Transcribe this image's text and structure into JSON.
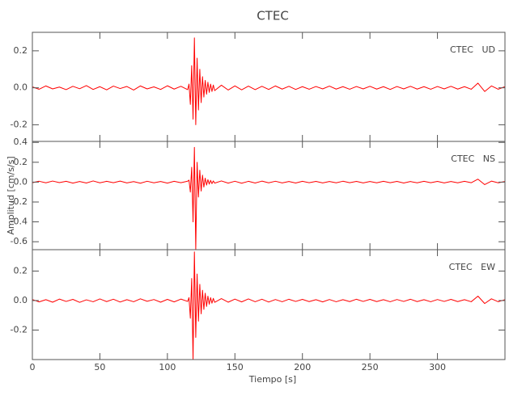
{
  "chart_data": [
    {
      "type": "line",
      "title": "CTEC",
      "label": "CTEC   UD",
      "color": "#ff0000",
      "x": [
        0,
        5,
        10,
        15,
        20,
        25,
        30,
        35,
        40,
        45,
        50,
        55,
        60,
        65,
        70,
        75,
        80,
        85,
        90,
        95,
        100,
        105,
        110,
        115,
        116,
        117,
        118,
        119,
        120,
        121,
        122,
        123,
        124,
        125,
        126,
        127,
        128,
        129,
        130,
        131,
        132,
        133,
        134,
        135,
        140,
        145,
        150,
        155,
        160,
        165,
        170,
        175,
        180,
        185,
        190,
        195,
        200,
        205,
        210,
        215,
        220,
        225,
        230,
        235,
        240,
        245,
        250,
        255,
        260,
        265,
        270,
        275,
        280,
        285,
        290,
        295,
        300,
        305,
        310,
        315,
        320,
        325,
        330,
        335,
        340,
        345,
        350
      ],
      "values": [
        0.005,
        -0.008,
        0.01,
        -0.006,
        0.004,
        -0.01,
        0.008,
        -0.005,
        0.012,
        -0.009,
        0.006,
        -0.011,
        0.009,
        -0.004,
        0.007,
        -0.012,
        0.01,
        -0.006,
        0.005,
        -0.009,
        0.011,
        -0.007,
        0.008,
        -0.01,
        0.02,
        -0.09,
        0.12,
        -0.17,
        0.27,
        -0.2,
        0.16,
        -0.12,
        0.1,
        -0.08,
        0.06,
        -0.05,
        0.04,
        -0.035,
        0.03,
        -0.025,
        0.02,
        -0.02,
        0.015,
        -0.015,
        0.014,
        -0.012,
        0.01,
        -0.011,
        0.009,
        -0.01,
        0.008,
        -0.009,
        0.01,
        -0.007,
        0.008,
        -0.009,
        0.006,
        -0.008,
        0.007,
        -0.006,
        0.009,
        -0.007,
        0.006,
        -0.008,
        0.007,
        -0.006,
        0.008,
        -0.007,
        0.006,
        -0.009,
        0.007,
        -0.006,
        0.008,
        -0.007,
        0.006,
        -0.008,
        0.007,
        -0.006,
        0.008,
        -0.007,
        0.006,
        -0.008,
        0.025,
        -0.02,
        0.01,
        -0.008,
        0.006
      ],
      "xlim": [
        0,
        350
      ],
      "ylim": [
        -0.29,
        0.3
      ],
      "yticks": [
        0.2,
        {
          "value": 0,
          "label": "0.0"
        },
        -0.2
      ]
    },
    {
      "type": "line",
      "label": "CTEC   NS",
      "ylabel": "Amplitud [cm/s/s]",
      "color": "#ff0000",
      "x": [
        0,
        5,
        10,
        15,
        20,
        25,
        30,
        35,
        40,
        45,
        50,
        55,
        60,
        65,
        70,
        75,
        80,
        85,
        90,
        95,
        100,
        105,
        110,
        115,
        116,
        117,
        118,
        119,
        120,
        121,
        122,
        123,
        124,
        125,
        126,
        127,
        128,
        129,
        130,
        131,
        132,
        133,
        134,
        135,
        140,
        145,
        150,
        155,
        160,
        165,
        170,
        175,
        180,
        185,
        190,
        195,
        200,
        205,
        210,
        215,
        220,
        225,
        230,
        235,
        240,
        245,
        250,
        255,
        260,
        265,
        270,
        275,
        280,
        285,
        290,
        295,
        300,
        305,
        310,
        315,
        320,
        325,
        330,
        335,
        340,
        345,
        350
      ],
      "values": [
        -0.006,
        0.009,
        -0.007,
        0.011,
        -0.005,
        0.008,
        -0.01,
        0.006,
        -0.009,
        0.012,
        -0.007,
        0.008,
        -0.006,
        0.01,
        -0.008,
        0.005,
        -0.011,
        0.009,
        -0.007,
        0.006,
        -0.01,
        0.008,
        -0.006,
        0.009,
        0.02,
        -0.1,
        0.15,
        -0.4,
        0.35,
        -0.68,
        0.2,
        -0.15,
        0.12,
        -0.09,
        0.07,
        -0.05,
        0.04,
        -0.03,
        0.025,
        -0.02,
        0.018,
        -0.015,
        0.012,
        -0.01,
        0.012,
        -0.01,
        0.009,
        -0.011,
        0.008,
        -0.009,
        0.01,
        -0.007,
        0.009,
        -0.008,
        0.006,
        -0.009,
        0.008,
        -0.006,
        0.007,
        -0.008,
        0.006,
        -0.007,
        0.009,
        -0.006,
        0.007,
        -0.008,
        0.006,
        -0.007,
        0.008,
        -0.006,
        0.007,
        -0.009,
        0.006,
        -0.007,
        0.008,
        -0.006,
        0.007,
        -0.008,
        0.006,
        -0.007,
        0.008,
        -0.006,
        0.03,
        -0.025,
        0.01,
        -0.007,
        0.006
      ],
      "xlim": [
        0,
        350
      ],
      "ylim": [
        -0.68,
        0.41
      ],
      "yticks": [
        0.4,
        0.2,
        {
          "value": 0,
          "label": "0.0"
        },
        -0.2,
        -0.4,
        -0.6
      ]
    },
    {
      "type": "line",
      "label": "CTEC   EW",
      "xlabel": "Tiempo [s]",
      "color": "#ff0000",
      "x": [
        0,
        5,
        10,
        15,
        20,
        25,
        30,
        35,
        40,
        45,
        50,
        55,
        60,
        65,
        70,
        75,
        80,
        85,
        90,
        95,
        100,
        105,
        110,
        115,
        116,
        117,
        118,
        119,
        120,
        121,
        122,
        123,
        124,
        125,
        126,
        127,
        128,
        129,
        130,
        131,
        132,
        133,
        134,
        135,
        140,
        145,
        150,
        155,
        160,
        165,
        170,
        175,
        180,
        185,
        190,
        195,
        200,
        205,
        210,
        215,
        220,
        225,
        230,
        235,
        240,
        245,
        250,
        255,
        260,
        265,
        270,
        275,
        280,
        285,
        290,
        295,
        300,
        305,
        310,
        315,
        320,
        325,
        330,
        335,
        340,
        345,
        350
      ],
      "values": [
        0.007,
        -0.009,
        0.006,
        -0.011,
        0.01,
        -0.006,
        0.008,
        -0.012,
        0.005,
        -0.008,
        0.011,
        -0.007,
        0.009,
        -0.01,
        0.006,
        -0.008,
        0.012,
        -0.005,
        0.007,
        -0.011,
        0.008,
        -0.009,
        0.01,
        -0.006,
        0.02,
        -0.12,
        0.15,
        -0.4,
        0.33,
        -0.25,
        0.18,
        -0.14,
        0.11,
        -0.09,
        0.07,
        -0.06,
        0.05,
        -0.04,
        0.03,
        -0.025,
        0.02,
        -0.018,
        0.015,
        -0.012,
        0.013,
        -0.011,
        0.01,
        -0.009,
        0.011,
        -0.008,
        0.009,
        -0.01,
        0.007,
        -0.008,
        0.009,
        -0.006,
        0.008,
        -0.007,
        0.006,
        -0.009,
        0.007,
        -0.008,
        0.006,
        -0.007,
        0.009,
        -0.006,
        0.008,
        -0.007,
        0.006,
        -0.008,
        0.007,
        -0.006,
        0.009,
        -0.007,
        0.006,
        -0.008,
        0.007,
        -0.006,
        0.008,
        -0.007,
        0.006,
        -0.008,
        0.03,
        -0.02,
        0.012,
        -0.008,
        0.006
      ],
      "xlim": [
        0,
        350
      ],
      "ylim": [
        -0.4,
        0.345
      ],
      "yticks": [
        0.2,
        {
          "value": 0,
          "label": "0.0"
        },
        -0.2
      ],
      "xticks": [
        0,
        50,
        100,
        150,
        200,
        250,
        300
      ]
    }
  ]
}
